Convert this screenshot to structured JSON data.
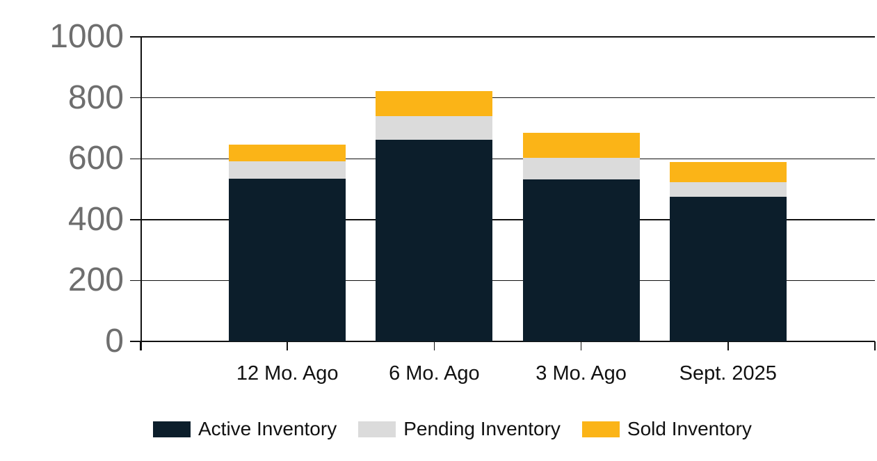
{
  "page": {
    "background_color": "#ffffff",
    "grid_color": "#111111",
    "y_label_color": "#6e6e6e",
    "x_label_color": "#111111"
  },
  "chart_data": {
    "type": "bar",
    "stacked": true,
    "title": "",
    "xlabel": "",
    "ylabel": "",
    "categories": [
      "12 Mo. Ago",
      "6 Mo. Ago",
      "3 Mo. Ago",
      "Sept. 2025"
    ],
    "series": [
      {
        "name": "Active Inventory",
        "color": "#0c1e2b",
        "values": [
          534,
          663,
          533,
          476
        ]
      },
      {
        "name": "Pending Inventory",
        "color": "#dbdbdb",
        "values": [
          57,
          76,
          70,
          48
        ]
      },
      {
        "name": "Sold Inventory",
        "color": "#fbb417",
        "values": [
          56,
          84,
          81,
          65
        ]
      }
    ],
    "totals": [
      647,
      823,
      684,
      589
    ],
    "ylim": [
      0,
      1000
    ],
    "yticks": [
      0,
      200,
      400,
      600,
      800,
      1000
    ],
    "grid": true,
    "legend_position": "bottom"
  }
}
